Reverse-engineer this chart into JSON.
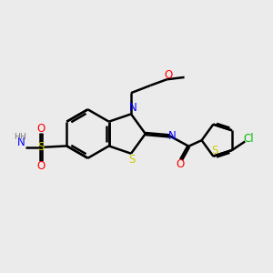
{
  "bg_color": "#ebebeb",
  "atom_colors": {
    "C": "#000000",
    "N": "#0000ff",
    "O": "#ff0000",
    "S": "#cccc00",
    "Cl": "#00bb00",
    "H": "#777777"
  },
  "bond_lw": 1.8,
  "font_size": 8.5
}
